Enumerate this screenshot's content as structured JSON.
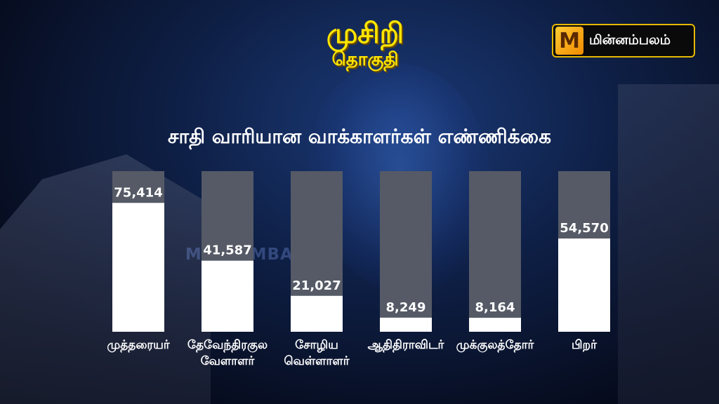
{
  "header": {
    "title": "முசிறி",
    "subtitle": "தொகுதி",
    "logo_text": "மின்னம்பலம்",
    "logo_mark": "M",
    "watermark": "MINNAMBALAM"
  },
  "chart_data": {
    "type": "bar",
    "title": "சாதி வாரியான வாக்காளர்கள்  எண்ணிக்கை",
    "categories": [
      [
        "முத்தரையர்"
      ],
      [
        "தேவேந்திரகுல",
        "வேளாளர்"
      ],
      [
        "சோழிய",
        "வெள்ளாளர்"
      ],
      [
        "ஆதிதிராவிடர்"
      ],
      [
        "முக்குலத்தோர்"
      ],
      [
        "பிறர்"
      ]
    ],
    "values": [
      75414,
      41587,
      21027,
      8249,
      8164,
      54570
    ],
    "value_labels": [
      "75,414",
      "41,587",
      "21,027",
      "8,249",
      "8,164",
      "54,570"
    ],
    "ylim": [
      0,
      94000
    ],
    "grid": false,
    "legend": "none",
    "colors": {
      "bar": "#ffffff",
      "track": "#555a66",
      "label": "#ffffff"
    }
  }
}
